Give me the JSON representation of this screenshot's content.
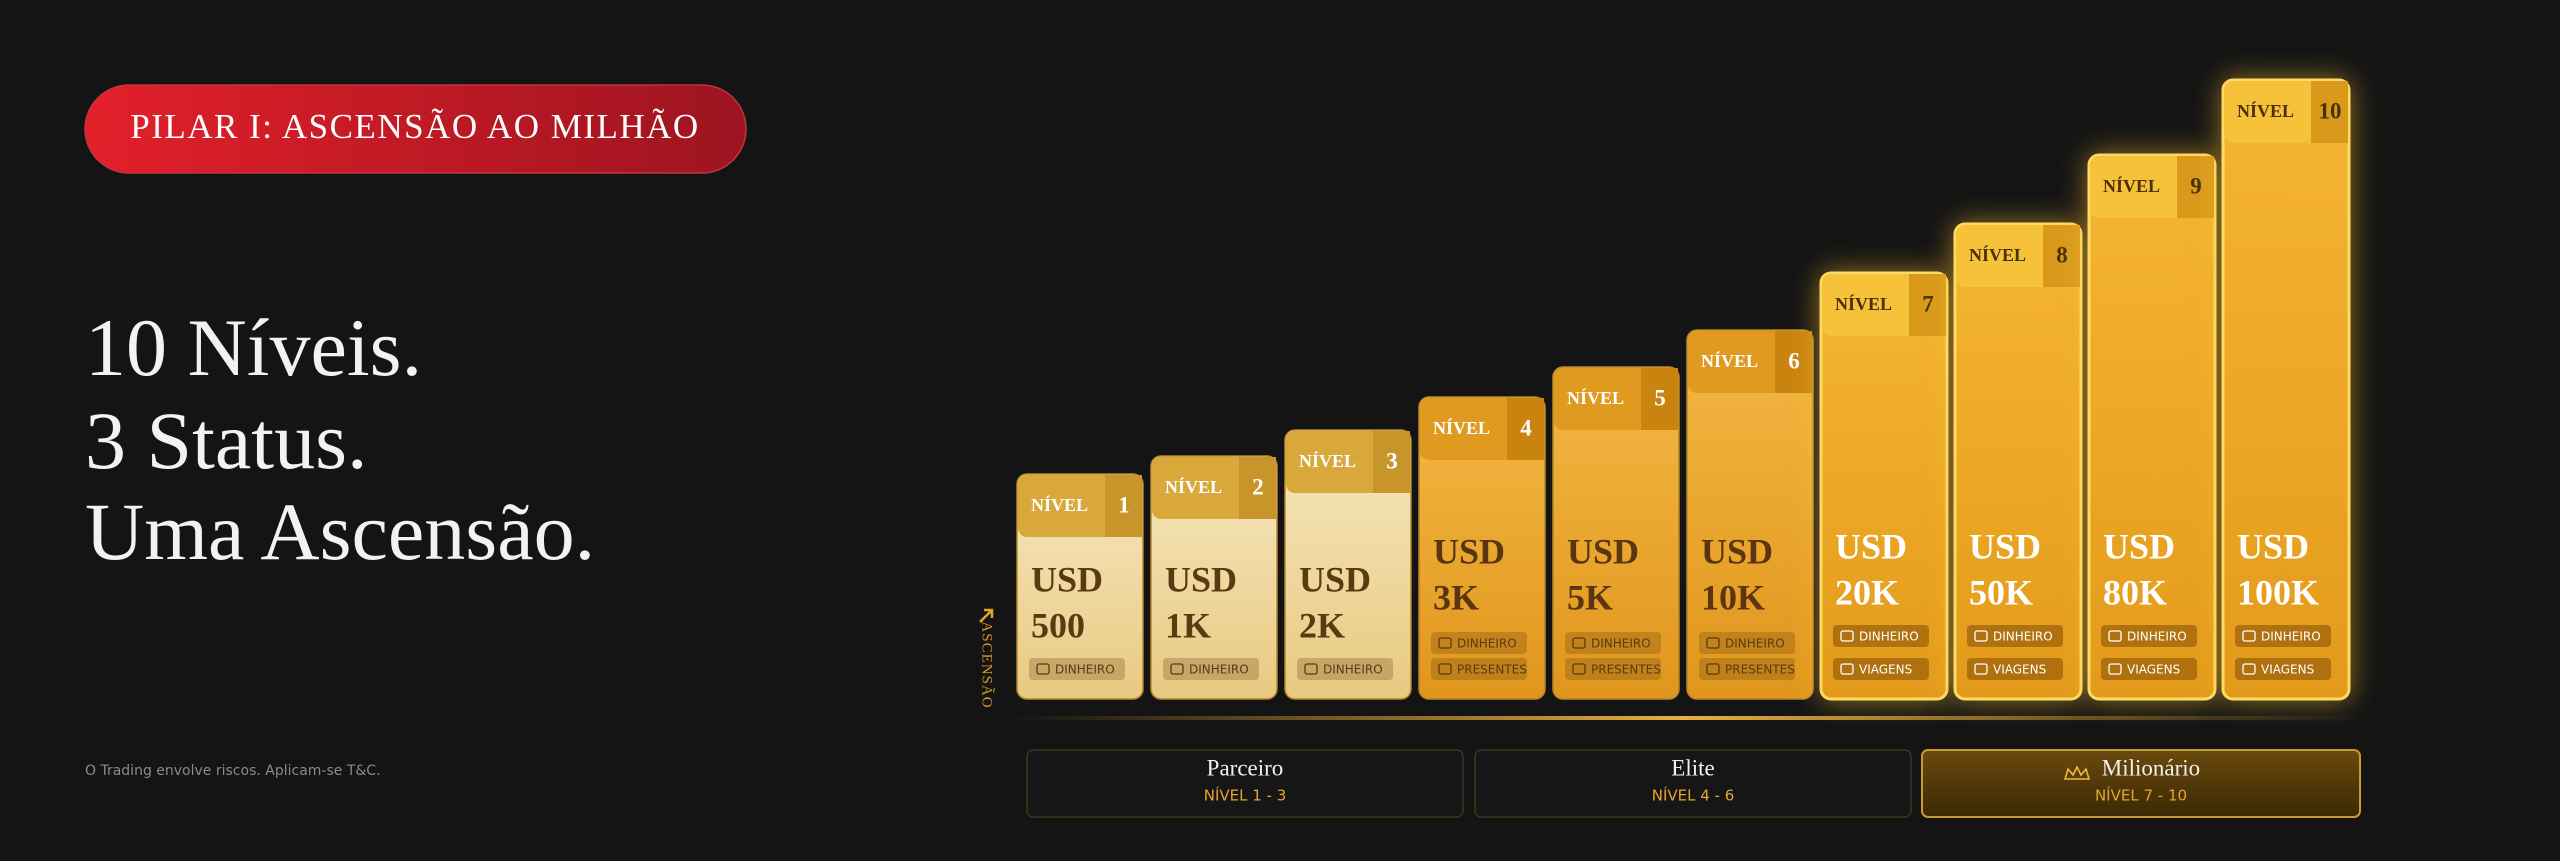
{
  "badge": "PILAR I: ASCENSÃO AO MILHÃO",
  "headline": [
    "10 Níveis.",
    "3 Status.",
    "Uma Ascensão."
  ],
  "disclaimer": "O Trading envolve riscos. Aplicam-se T&C.",
  "axis_label": "ASCENSÃO",
  "levels": [
    {
      "label": "NÍVEL",
      "number": "1",
      "currency": "USD",
      "amount": "500",
      "tags": [
        "DINHEIRO"
      ]
    },
    {
      "label": "NÍVEL",
      "number": "2",
      "currency": "USD",
      "amount": "1K",
      "tags": [
        "DINHEIRO"
      ]
    },
    {
      "label": "NÍVEL",
      "number": "3",
      "currency": "USD",
      "amount": "2K",
      "tags": [
        "DINHEIRO"
      ]
    },
    {
      "label": "NÍVEL",
      "number": "4",
      "currency": "USD",
      "amount": "3K",
      "tags": [
        "DINHEIRO",
        "PRESENTES"
      ]
    },
    {
      "label": "NÍVEL",
      "number": "5",
      "currency": "USD",
      "amount": "5K",
      "tags": [
        "DINHEIRO",
        "PRESENTES"
      ]
    },
    {
      "label": "NÍVEL",
      "number": "6",
      "currency": "USD",
      "amount": "10K",
      "tags": [
        "DINHEIRO",
        "PRESENTES"
      ]
    },
    {
      "label": "NÍVEL",
      "number": "7",
      "currency": "USD",
      "amount": "20K",
      "tags": [
        "DINHEIRO",
        "VIAGENS"
      ]
    },
    {
      "label": "NÍVEL",
      "number": "8",
      "currency": "USD",
      "amount": "50K",
      "tags": [
        "DINHEIRO",
        "VIAGENS"
      ]
    },
    {
      "label": "NÍVEL",
      "number": "9",
      "currency": "USD",
      "amount": "80K",
      "tags": [
        "DINHEIRO",
        "VIAGENS"
      ]
    },
    {
      "label": "NÍVEL",
      "number": "10",
      "currency": "USD",
      "amount": "100K",
      "tags": [
        "DINHEIRO",
        "VIAGENS"
      ]
    }
  ],
  "statuses": [
    {
      "name": "Parceiro",
      "range": "NÍVEL 1 - 3"
    },
    {
      "name": "Elite",
      "range": "NÍVEL 4 - 6"
    },
    {
      "name": "Milionário",
      "range": "NÍVEL 7 - 10"
    }
  ]
}
